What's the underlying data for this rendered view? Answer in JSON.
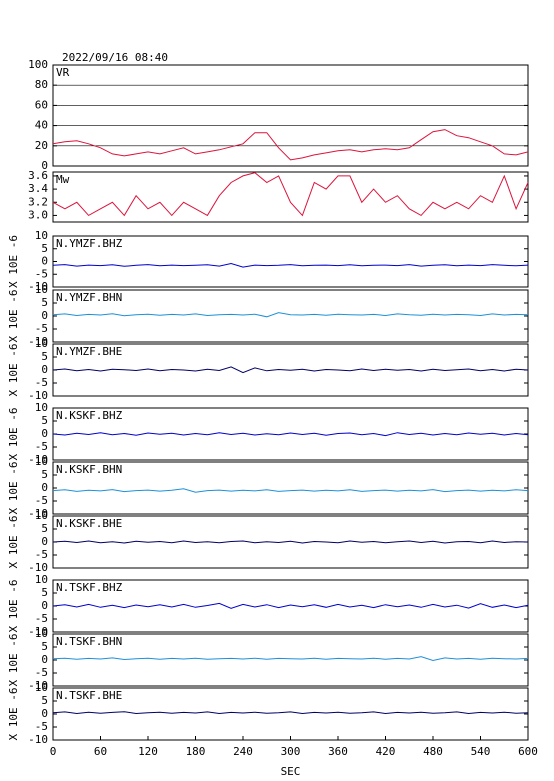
{
  "chart_data": [
    {
      "type": "line",
      "title": "2022/09/16 08:40",
      "label": "VR",
      "color": "#dc143c",
      "grid": true,
      "x": [
        0,
        15,
        30,
        45,
        60,
        75,
        90,
        105,
        120,
        135,
        150,
        165,
        180,
        195,
        210,
        225,
        240,
        255,
        270,
        285,
        300,
        315,
        330,
        345,
        360,
        375,
        390,
        405,
        420,
        435,
        450,
        465,
        480,
        495,
        510,
        525,
        540,
        555,
        570,
        585,
        600
      ],
      "values": [
        22,
        24,
        25,
        22,
        18,
        12,
        10,
        12,
        14,
        12,
        15,
        18,
        12,
        14,
        16,
        19,
        22,
        33,
        33,
        18,
        6,
        8,
        11,
        13,
        15,
        16,
        14,
        16,
        17,
        16,
        18,
        26,
        34,
        36,
        30,
        28,
        24,
        20,
        12,
        11,
        14
      ],
      "ylim": [
        0,
        100
      ],
      "yticks": [
        0,
        20,
        40,
        60,
        80,
        100
      ],
      "xlim": [
        0,
        600
      ]
    },
    {
      "type": "line",
      "label": "Mw",
      "color": "#dc143c",
      "x": [
        0,
        15,
        30,
        45,
        60,
        75,
        90,
        105,
        120,
        135,
        150,
        165,
        180,
        195,
        210,
        225,
        240,
        255,
        270,
        285,
        300,
        315,
        330,
        345,
        360,
        375,
        390,
        405,
        420,
        435,
        450,
        465,
        480,
        495,
        510,
        525,
        540,
        555,
        570,
        585,
        600
      ],
      "values": [
        3.2,
        3.1,
        3.2,
        3.0,
        3.1,
        3.2,
        3.0,
        3.3,
        3.1,
        3.2,
        3.0,
        3.2,
        3.1,
        3.0,
        3.3,
        3.5,
        3.6,
        3.65,
        3.5,
        3.6,
        3.2,
        3.0,
        3.5,
        3.4,
        3.6,
        3.6,
        3.2,
        3.4,
        3.2,
        3.3,
        3.1,
        3.0,
        3.2,
        3.1,
        3.2,
        3.1,
        3.3,
        3.2,
        3.6,
        3.1,
        3.5
      ],
      "ylim": [
        2.9,
        3.66
      ],
      "yticks": [
        {
          "value": 3,
          "label": "3.0"
        },
        3.2,
        3.4,
        3.6
      ],
      "xlim": [
        0,
        600
      ]
    },
    {
      "type": "line",
      "label": "N.YMZF.BHZ",
      "ylabel": "X 10E -6",
      "color": "#0000cc",
      "x": [
        0,
        15,
        30,
        45,
        60,
        75,
        90,
        105,
        120,
        135,
        150,
        165,
        180,
        195,
        210,
        225,
        240,
        255,
        270,
        285,
        300,
        315,
        330,
        345,
        360,
        375,
        390,
        405,
        420,
        435,
        450,
        465,
        480,
        495,
        510,
        525,
        540,
        555,
        570,
        585,
        600
      ],
      "values": [
        -1.5,
        -1.2,
        -1.8,
        -1.4,
        -1.6,
        -1.3,
        -1.9,
        -1.5,
        -1.2,
        -1.7,
        -1.4,
        -1.6,
        -1.5,
        -1.3,
        -1.8,
        -0.8,
        -2.2,
        -1.4,
        -1.6,
        -1.5,
        -1.2,
        -1.7,
        -1.5,
        -1.4,
        -1.6,
        -1.3,
        -1.7,
        -1.5,
        -1.4,
        -1.6,
        -1.2,
        -1.8,
        -1.5,
        -1.3,
        -1.7,
        -1.4,
        -1.6,
        -1.2,
        -1.5,
        -1.7,
        -1.4
      ],
      "ylim": [
        -10,
        10
      ],
      "yticks": [
        -10,
        -5,
        0,
        5,
        10
      ],
      "xlim": [
        0,
        600
      ]
    },
    {
      "type": "line",
      "label": "N.YMZF.BHN",
      "ylabel": "X 10E -6",
      "color": "#1e90d8",
      "x": [
        0,
        15,
        30,
        45,
        60,
        75,
        90,
        105,
        120,
        135,
        150,
        165,
        180,
        195,
        210,
        225,
        240,
        255,
        270,
        285,
        300,
        315,
        330,
        345,
        360,
        375,
        390,
        405,
        420,
        435,
        450,
        465,
        480,
        495,
        510,
        525,
        540,
        555,
        570,
        585,
        600
      ],
      "values": [
        0.5,
        0.8,
        0.2,
        0.6,
        0.4,
        0.9,
        0.1,
        0.5,
        0.7,
        0.3,
        0.6,
        0.4,
        0.8,
        0.2,
        0.5,
        0.6,
        0.4,
        0.7,
        -0.3,
        1.3,
        0.5,
        0.4,
        0.6,
        0.3,
        0.7,
        0.5,
        0.4,
        0.6,
        0.2,
        0.8,
        0.5,
        0.3,
        0.7,
        0.4,
        0.6,
        0.5,
        0.2,
        0.8,
        0.4,
        0.6,
        0.5
      ],
      "ylim": [
        -10,
        10
      ],
      "yticks": [
        -10,
        -5,
        0,
        5,
        10
      ],
      "xlim": [
        0,
        600
      ]
    },
    {
      "type": "line",
      "label": "N.YMZF.BHE",
      "ylabel": "X 10E -6",
      "color": "#000066",
      "x": [
        0,
        15,
        30,
        45,
        60,
        75,
        90,
        105,
        120,
        135,
        150,
        165,
        180,
        195,
        210,
        225,
        240,
        255,
        270,
        285,
        300,
        315,
        330,
        345,
        360,
        375,
        390,
        405,
        420,
        435,
        450,
        465,
        480,
        495,
        510,
        525,
        540,
        555,
        570,
        585,
        600
      ],
      "values": [
        0.0,
        0.4,
        -0.3,
        0.2,
        -0.4,
        0.3,
        0.1,
        -0.2,
        0.4,
        -0.3,
        0.2,
        0.0,
        -0.4,
        0.3,
        -0.2,
        1.2,
        -1.0,
        0.8,
        -0.3,
        0.2,
        -0.1,
        0.3,
        -0.4,
        0.2,
        0.0,
        -0.3,
        0.4,
        -0.2,
        0.3,
        -0.1,
        0.2,
        -0.4,
        0.3,
        -0.2,
        0.1,
        0.4,
        -0.3,
        0.2,
        -0.4,
        0.3,
        0.0
      ],
      "ylim": [
        -10,
        10
      ],
      "yticks": [
        -10,
        -5,
        0,
        5,
        10
      ],
      "xlim": [
        0,
        600
      ]
    },
    {
      "type": "line",
      "label": "N.KSKF.BHZ",
      "ylabel": "X 10E -6",
      "color": "#0000cc",
      "x": [
        0,
        15,
        30,
        45,
        60,
        75,
        90,
        105,
        120,
        135,
        150,
        165,
        180,
        195,
        210,
        225,
        240,
        255,
        270,
        285,
        300,
        315,
        330,
        345,
        360,
        375,
        390,
        405,
        420,
        435,
        450,
        465,
        480,
        495,
        510,
        525,
        540,
        555,
        570,
        585,
        600
      ],
      "values": [
        0.0,
        -0.4,
        0.3,
        -0.2,
        0.5,
        -0.3,
        0.2,
        -0.5,
        0.4,
        -0.1,
        0.3,
        -0.4,
        0.2,
        -0.3,
        0.5,
        -0.2,
        0.3,
        -0.4,
        0.1,
        -0.3,
        0.4,
        -0.2,
        0.3,
        -0.5,
        0.2,
        0.4,
        -0.3,
        0.2,
        -0.6,
        0.5,
        -0.2,
        0.3,
        -0.4,
        0.2,
        -0.3,
        0.4,
        -0.1,
        0.3,
        -0.4,
        0.2,
        -0.3
      ],
      "ylim": [
        -10,
        10
      ],
      "yticks": [
        -10,
        -5,
        0,
        5,
        10
      ],
      "xlim": [
        0,
        600
      ]
    },
    {
      "type": "line",
      "label": "N.KSKF.BHN",
      "ylabel": "X 10E -6",
      "color": "#1e90d8",
      "x": [
        0,
        15,
        30,
        45,
        60,
        75,
        90,
        105,
        120,
        135,
        150,
        165,
        180,
        195,
        210,
        225,
        240,
        255,
        270,
        285,
        300,
        315,
        330,
        345,
        360,
        375,
        390,
        405,
        420,
        435,
        450,
        465,
        480,
        495,
        510,
        525,
        540,
        555,
        570,
        585,
        600
      ],
      "values": [
        -1.0,
        -0.7,
        -1.3,
        -0.9,
        -1.1,
        -0.6,
        -1.4,
        -1.0,
        -0.8,
        -1.2,
        -0.9,
        -0.3,
        -1.6,
        -1.0,
        -0.8,
        -1.2,
        -0.9,
        -1.1,
        -0.7,
        -1.3,
        -1.0,
        -0.8,
        -1.2,
        -0.9,
        -1.1,
        -0.7,
        -1.3,
        -1.0,
        -0.8,
        -1.2,
        -0.9,
        -1.1,
        -0.6,
        -1.4,
        -1.0,
        -0.8,
        -1.2,
        -0.9,
        -1.1,
        -0.7,
        -1.0
      ],
      "ylim": [
        -10,
        10
      ],
      "yticks": [
        -10,
        -5,
        0,
        5,
        10
      ],
      "xlim": [
        0,
        600
      ]
    },
    {
      "type": "line",
      "label": "N.KSKF.BHE",
      "ylabel": "X 10E -6",
      "color": "#000066",
      "x": [
        0,
        15,
        30,
        45,
        60,
        75,
        90,
        105,
        120,
        135,
        150,
        165,
        180,
        195,
        210,
        225,
        240,
        255,
        270,
        285,
        300,
        315,
        330,
        345,
        360,
        375,
        390,
        405,
        420,
        435,
        450,
        465,
        480,
        495,
        510,
        525,
        540,
        555,
        570,
        585,
        600
      ],
      "values": [
        0.0,
        0.3,
        -0.2,
        0.4,
        -0.3,
        0.1,
        -0.4,
        0.3,
        -0.1,
        0.2,
        -0.3,
        0.4,
        -0.2,
        0.1,
        -0.3,
        0.2,
        0.4,
        -0.3,
        0.1,
        -0.2,
        0.3,
        -0.4,
        0.2,
        0.0,
        -0.3,
        0.4,
        -0.1,
        0.2,
        -0.3,
        0.1,
        0.4,
        -0.2,
        0.3,
        -0.4,
        0.1,
        0.2,
        -0.3,
        0.4,
        -0.2,
        0.1,
        0.0
      ],
      "ylim": [
        -10,
        10
      ],
      "yticks": [
        -10,
        -5,
        0,
        5,
        10
      ],
      "xlim": [
        0,
        600
      ]
    },
    {
      "type": "line",
      "label": "N.TSKF.BHZ",
      "ylabel": "X 10E -6",
      "color": "#0000cc",
      "x": [
        0,
        15,
        30,
        45,
        60,
        75,
        90,
        105,
        120,
        135,
        150,
        165,
        180,
        195,
        210,
        225,
        240,
        255,
        270,
        285,
        300,
        315,
        330,
        345,
        360,
        375,
        390,
        405,
        420,
        435,
        450,
        465,
        480,
        495,
        510,
        525,
        540,
        555,
        570,
        585,
        600
      ],
      "values": [
        0.0,
        0.5,
        -0.4,
        0.6,
        -0.5,
        0.3,
        -0.6,
        0.4,
        -0.3,
        0.5,
        -0.4,
        0.6,
        -0.5,
        0.2,
        1.0,
        -0.9,
        0.6,
        -0.4,
        0.5,
        -0.6,
        0.4,
        -0.3,
        0.5,
        -0.5,
        0.6,
        -0.4,
        0.3,
        -0.6,
        0.5,
        -0.3,
        0.4,
        -0.5,
        0.6,
        -0.4,
        0.3,
        -0.8,
        0.9,
        -0.5,
        0.4,
        -0.6,
        0.3
      ],
      "ylim": [
        -10,
        10
      ],
      "yticks": [
        -10,
        -5,
        0,
        5,
        10
      ],
      "xlim": [
        0,
        600
      ]
    },
    {
      "type": "line",
      "label": "N.TSKF.BHN",
      "ylabel": "X 10E -6",
      "color": "#1e90d8",
      "x": [
        0,
        15,
        30,
        45,
        60,
        75,
        90,
        105,
        120,
        135,
        150,
        165,
        180,
        195,
        210,
        225,
        240,
        255,
        270,
        285,
        300,
        315,
        330,
        345,
        360,
        375,
        390,
        405,
        420,
        435,
        450,
        465,
        480,
        495,
        510,
        525,
        540,
        555,
        570,
        585,
        600
      ],
      "values": [
        0.5,
        0.7,
        0.3,
        0.6,
        0.4,
        0.8,
        0.2,
        0.5,
        0.7,
        0.3,
        0.6,
        0.4,
        0.7,
        0.3,
        0.5,
        0.6,
        0.4,
        0.7,
        0.3,
        0.6,
        0.5,
        0.4,
        0.7,
        0.3,
        0.6,
        0.5,
        0.4,
        0.7,
        0.3,
        0.6,
        0.4,
        1.3,
        -0.2,
        0.8,
        0.4,
        0.6,
        0.3,
        0.7,
        0.5,
        0.4,
        0.6
      ],
      "ylim": [
        -10,
        10
      ],
      "yticks": [
        -10,
        -5,
        0,
        5,
        10
      ],
      "xlim": [
        0,
        600
      ]
    },
    {
      "type": "line",
      "label": "N.TSKF.BHE",
      "ylabel": "X 10E -6",
      "color": "#000066",
      "x": [
        0,
        15,
        30,
        45,
        60,
        75,
        90,
        105,
        120,
        135,
        150,
        165,
        180,
        195,
        210,
        225,
        240,
        255,
        270,
        285,
        300,
        315,
        330,
        345,
        360,
        375,
        390,
        405,
        420,
        435,
        450,
        465,
        480,
        495,
        510,
        525,
        540,
        555,
        570,
        585,
        600
      ],
      "values": [
        0.5,
        0.8,
        0.2,
        0.7,
        0.3,
        0.6,
        0.9,
        0.2,
        0.5,
        0.7,
        0.3,
        0.6,
        0.4,
        0.8,
        0.2,
        0.6,
        0.4,
        0.7,
        0.3,
        0.5,
        0.8,
        0.2,
        0.6,
        0.4,
        0.7,
        0.3,
        0.5,
        0.8,
        0.2,
        0.6,
        0.4,
        0.7,
        0.3,
        0.5,
        0.8,
        0.2,
        0.6,
        0.4,
        0.7,
        0.3,
        0.5
      ],
      "ylim": [
        -10,
        10
      ],
      "yticks": [
        -10,
        -5,
        0,
        5,
        10
      ],
      "xlim": [
        0,
        600
      ],
      "xticks": [
        0,
        60,
        120,
        180,
        240,
        300,
        360,
        420,
        480,
        540,
        600
      ],
      "xlabel": "SEC"
    }
  ]
}
